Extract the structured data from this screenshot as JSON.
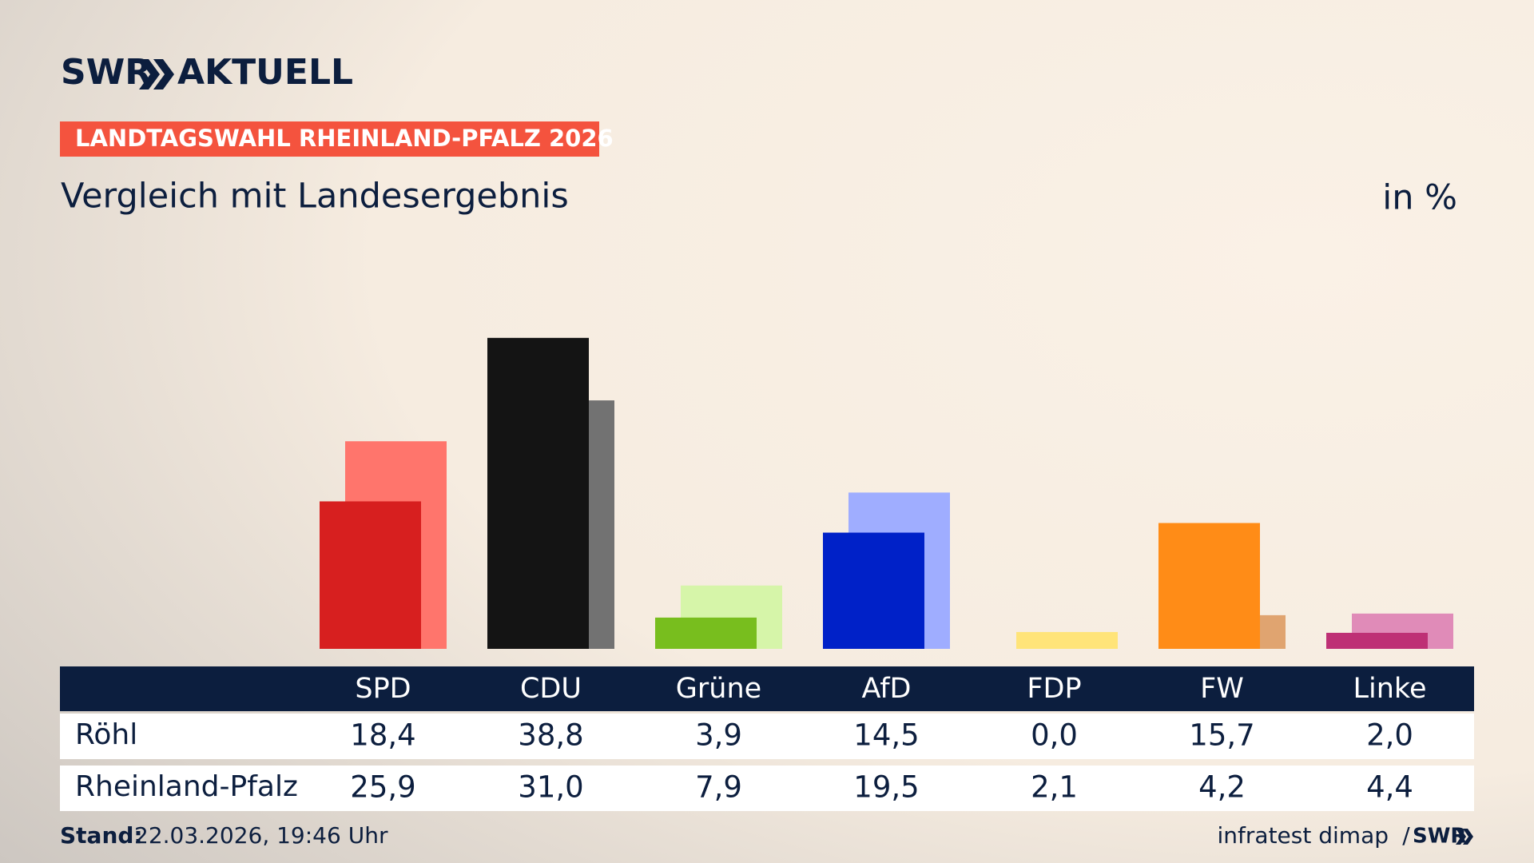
{
  "chart_data": {
    "type": "bar",
    "brand": "SWR",
    "section": "AKTUELL",
    "badge": "LANDTAGSWAHL RHEINLAND-PFALZ 2026",
    "title": "Vergleich mit Landesergebnis",
    "unit": "in %",
    "categories": [
      "SPD",
      "CDU",
      "Grüne",
      "AfD",
      "FDP",
      "FW",
      "Linke"
    ],
    "series": [
      {
        "name": "Röhl",
        "colors": [
          "#d71f1f",
          "#141414",
          "#78be1e",
          "#0021c8",
          "#ffe36d",
          "#ff8c17",
          "#be3075"
        ],
        "values": [
          18.4,
          38.8,
          3.9,
          14.5,
          0.0,
          15.7,
          2.0
        ],
        "value_labels": [
          "18,4",
          "38,8",
          "3,9",
          "14,5",
          "0,0",
          "15,7",
          "2,0"
        ]
      },
      {
        "name": "Rheinland-Pfalz",
        "colors": [
          "#ff756c",
          "#727272",
          "#d6f5a9",
          "#9fadff",
          "#ffe479",
          "#e0a470",
          "#e08bb8"
        ],
        "values": [
          25.9,
          31.0,
          7.9,
          19.5,
          2.1,
          4.2,
          4.4
        ],
        "value_labels": [
          "25,9",
          "31,0",
          "7,9",
          "19,5",
          "2,1",
          "4,2",
          "4,4"
        ]
      }
    ],
    "footer": {
      "stand_label": "Stand:",
      "stand": "22.03.2026, 19:46 Uhr",
      "source": "infratest dimap",
      "separator": "/",
      "brand": "SWR"
    }
  }
}
